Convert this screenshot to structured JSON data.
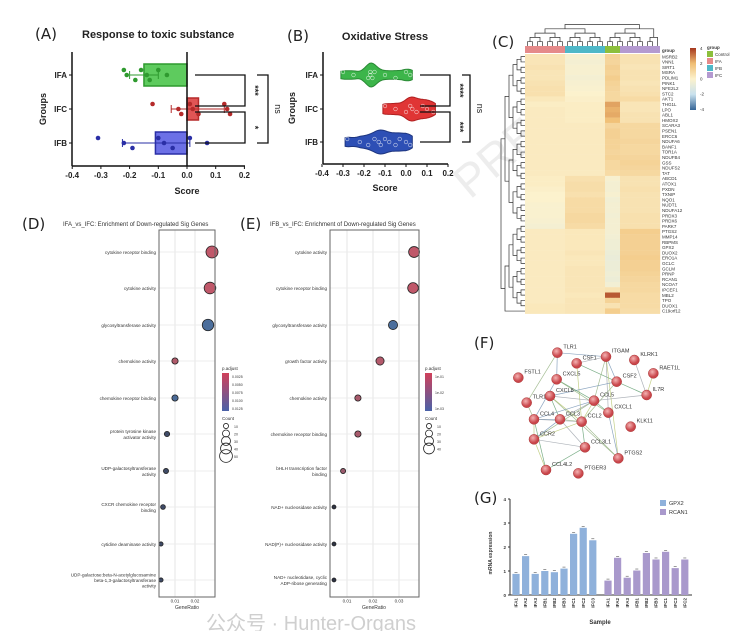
{
  "panels": {
    "A": "(A)",
    "B": "(B)",
    "C": "(C)",
    "D": "(D)",
    "E": "(E)",
    "F": "(F)",
    "G": "(G)"
  },
  "watermarks": {
    "diagonal": "PRES",
    "footer": "公众号 · Hunter-Organs"
  },
  "chart_data": [
    {
      "id": "A",
      "type": "bar",
      "orientation": "horizontal",
      "title": "Response to toxic substance",
      "xlabel": "Score",
      "ylabel": "Groups",
      "xlim": [
        -0.4,
        0.2
      ],
      "xticks": [
        "-0.4",
        "-0.3",
        "-0.2",
        "-0.1",
        "0.0",
        "0.1",
        "0.2"
      ],
      "categories": [
        "IFA",
        "IFC",
        "IFB"
      ],
      "colors": {
        "IFA": "#5ecb5e",
        "IFC": "#e05555",
        "IFB": "#6c70e6"
      },
      "values": [
        -0.15,
        0.04,
        -0.11
      ],
      "error": [
        [
          -0.2,
          -0.1
        ],
        [
          -0.055,
          0.13
        ],
        [
          -0.225,
          0.01
        ]
      ],
      "points": [
        [
          -0.22,
          -0.21,
          -0.18,
          -0.16,
          -0.14,
          -0.13,
          -0.1,
          -0.07
        ],
        [
          -0.12,
          -0.03,
          -0.02,
          0.01,
          0.02,
          0.04,
          0.13,
          0.14,
          0.15
        ],
        [
          -0.31,
          -0.22,
          -0.19,
          -0.1,
          -0.08,
          -0.05,
          0.01,
          0.07
        ]
      ],
      "significance": [
        {
          "pair": [
            "IFA",
            "IFC"
          ],
          "label": "***"
        },
        {
          "pair": [
            "IFC",
            "IFB"
          ],
          "label": "*"
        },
        {
          "pair": [
            "IFA",
            "IFB"
          ],
          "label": "ns"
        }
      ]
    },
    {
      "id": "B",
      "type": "violin",
      "title": "Oxidative Stress",
      "xlabel": "Score",
      "ylabel": "Groups",
      "xlim": [
        -0.4,
        0.2
      ],
      "xticks": [
        "-0.4",
        "-0.3",
        "-0.2",
        "-0.1",
        "0.0",
        "0.1",
        "0.2"
      ],
      "categories": [
        "IFA",
        "IFC",
        "IFB"
      ],
      "colors": {
        "IFA": "#3cb54a",
        "IFC": "#e03535",
        "IFB": "#2d4fb5"
      },
      "points": [
        [
          -0.3,
          -0.25,
          -0.18,
          -0.17,
          -0.17,
          -0.16,
          -0.15,
          -0.1,
          -0.05,
          0.0,
          0.02
        ],
        [
          -0.1,
          -0.05,
          0.0,
          0.02,
          0.03,
          0.05,
          0.08,
          0.1,
          0.13
        ],
        [
          -0.28,
          -0.22,
          -0.18,
          -0.15,
          -0.13,
          -0.12,
          -0.1,
          -0.08,
          -0.05,
          -0.03,
          0.0,
          0.02
        ]
      ],
      "significance": [
        {
          "pair": [
            "IFA",
            "IFC"
          ],
          "label": "****"
        },
        {
          "pair": [
            "IFC",
            "IFB"
          ],
          "label": "***"
        },
        {
          "pair": [
            "IFA",
            "IFB"
          ],
          "label": "ns"
        }
      ]
    },
    {
      "id": "C",
      "type": "heatmap",
      "column_groups": [
        {
          "name": "IFA",
          "n": 8,
          "color": "#e58a8a"
        },
        {
          "name": "IFB",
          "n": 8,
          "color": "#4fb8c8"
        },
        {
          "name": "Control",
          "n": 3,
          "color": "#8cbf3c"
        },
        {
          "name": "IFC",
          "n": 8,
          "color": "#b49ad0"
        }
      ],
      "group_title": "group",
      "legend_title": "group",
      "legend_order": [
        "Control",
        "IFA",
        "IFB",
        "IFC"
      ],
      "scale_ticks": [
        "4",
        "2",
        "0",
        "-2",
        "-4"
      ],
      "scale_range": [
        -4,
        4
      ],
      "rows": [
        "MSRB2",
        "VNN1",
        "SIRT1",
        "MSRA",
        "PDLIM1",
        "PINK1",
        "NFE2L2",
        "STC2",
        "AKT1",
        "THG1L",
        "LPO",
        "ABL1",
        "HMOX2",
        "SCARA3",
        "PSEN1",
        "ERCC6",
        "NDUFA6",
        "BANF1",
        "TOR1A",
        "NDUFB4",
        "GSS",
        "NDUFS2",
        "TAT",
        "ABCD1",
        "ATOX1",
        "PXDN",
        "TXNIP",
        "NQO1",
        "NUDT1",
        "NDUFA12",
        "PRDX3",
        "PRDX6",
        "PARK7",
        "PTGS2",
        "MMP14",
        "RBPMS",
        "GPX2",
        "DUOX2",
        "ERO1A",
        "GCLC",
        "GCLM",
        "PRNP",
        "RCAN1",
        "NCOA7",
        "IPCEF1",
        "MBL2",
        "TPO",
        "DUOX1",
        "C19orf12"
      ],
      "group_means_IFA_IFB_Control_IFC": [
        [
          0.5,
          -0.2,
          1.2,
          0.6
        ],
        [
          0.5,
          -0.3,
          1.1,
          0.6
        ],
        [
          0.6,
          -0.2,
          1.3,
          0.5
        ],
        [
          0.5,
          -0.2,
          1.2,
          0.6
        ],
        [
          0.5,
          -0.3,
          1.4,
          0.6
        ],
        [
          0.6,
          -0.2,
          1.2,
          0.5
        ],
        [
          0.7,
          -0.1,
          1.1,
          0.6
        ],
        [
          0.7,
          0.0,
          1.0,
          0.7
        ],
        [
          0.4,
          0.1,
          1.0,
          0.9
        ],
        [
          0.2,
          0.2,
          2.4,
          0.5
        ],
        [
          0.3,
          0.2,
          2.2,
          0.5
        ],
        [
          0.3,
          0.2,
          2.3,
          0.6
        ],
        [
          0.3,
          0.2,
          1.9,
          0.6
        ],
        [
          0.3,
          0.3,
          1.1,
          1.0
        ],
        [
          0.3,
          0.3,
          1.3,
          1.0
        ],
        [
          0.3,
          0.3,
          1.3,
          1.0
        ],
        [
          0.3,
          0.3,
          1.2,
          1.1
        ],
        [
          0.3,
          0.3,
          1.2,
          1.0
        ],
        [
          0.3,
          0.3,
          1.1,
          1.0
        ],
        [
          0.3,
          0.3,
          1.2,
          1.1
        ],
        [
          0.3,
          0.3,
          1.0,
          1.2
        ],
        [
          0.3,
          0.3,
          1.0,
          1.1
        ],
        [
          0.3,
          0.3,
          0.9,
          1.0
        ],
        [
          0.2,
          0.7,
          -0.2,
          0.6
        ],
        [
          0.2,
          0.8,
          -0.3,
          0.6
        ],
        [
          0.1,
          0.8,
          -0.3,
          0.7
        ],
        [
          0.0,
          0.7,
          -0.2,
          0.6
        ],
        [
          0.0,
          0.9,
          -0.4,
          0.6
        ],
        [
          -0.1,
          0.9,
          -0.3,
          0.6
        ],
        [
          -0.1,
          0.9,
          -0.3,
          0.6
        ],
        [
          -0.1,
          1.0,
          -0.4,
          0.7
        ],
        [
          -0.2,
          1.0,
          -0.3,
          0.7
        ],
        [
          -0.3,
          0.9,
          -0.3,
          0.7
        ],
        [
          0.3,
          0.4,
          -0.3,
          1.4
        ],
        [
          0.3,
          0.4,
          -0.4,
          1.3
        ],
        [
          0.3,
          0.4,
          -0.5,
          1.3
        ],
        [
          0.3,
          0.4,
          -0.5,
          1.3
        ],
        [
          0.3,
          0.5,
          -0.6,
          1.3
        ],
        [
          0.3,
          0.4,
          -0.7,
          1.4
        ],
        [
          0.3,
          0.4,
          -0.6,
          1.3
        ],
        [
          0.3,
          0.5,
          -0.6,
          1.3
        ],
        [
          0.3,
          0.5,
          -0.5,
          1.2
        ],
        [
          0.3,
          0.5,
          -0.6,
          1.1
        ],
        [
          0.3,
          0.5,
          -0.4,
          1.0
        ],
        [
          0.3,
          0.5,
          0.6,
          1.0
        ],
        [
          0.3,
          0.4,
          3.5,
          0.9
        ],
        [
          0.3,
          0.5,
          1.2,
          0.9
        ],
        [
          0.4,
          0.5,
          0.6,
          0.9
        ],
        [
          0.4,
          0.5,
          1.4,
          0.8
        ]
      ]
    },
    {
      "id": "D",
      "type": "scatter",
      "title": "IFA_vs_IFC: Enrichment of Down-regulated Sig Genes",
      "xlabel": "GeneRatio",
      "xticks": [
        0.01,
        0.02
      ],
      "terms": [
        {
          "label": [
            "cytokine receptor binding"
          ],
          "ratio": 0.0285,
          "count": 46,
          "color": "#c0586a"
        },
        {
          "label": [
            "cytokine activity"
          ],
          "ratio": 0.0275,
          "count": 44,
          "color": "#c0586a"
        },
        {
          "label": [
            "glycosyltransferase activity"
          ],
          "ratio": 0.0265,
          "count": 43,
          "color": "#4b6e9c"
        },
        {
          "label": [
            "chemokine activity"
          ],
          "ratio": 0.01,
          "count": 16,
          "color": "#b05a6a"
        },
        {
          "label": [
            "chemokine receptor binding"
          ],
          "ratio": 0.01,
          "count": 16,
          "color": "#4a6a96"
        },
        {
          "label": [
            "protein tyrosine kinase",
            "activator activity"
          ],
          "ratio": 0.006,
          "count": 11,
          "color": "#3e4a66"
        },
        {
          "label": [
            "UDP-galactosyltransferase",
            "activity"
          ],
          "ratio": 0.0055,
          "count": 10,
          "color": "#3e4a66"
        },
        {
          "label": [
            "CXCR chemokine receptor",
            "binding"
          ],
          "ratio": 0.004,
          "count": 8,
          "color": "#3e4a66"
        },
        {
          "label": [
            "cytidine deaminase activity"
          ],
          "ratio": 0.003,
          "count": 5,
          "color": "#3e4a66"
        },
        {
          "label": [
            "UDP-galactose:beta-N-acetylglucosamine",
            "beta-1,3-galactosyltransferase",
            "activity"
          ],
          "ratio": 0.003,
          "count": 5,
          "color": "#3e4a66"
        }
      ],
      "legend": {
        "color_title": "p.adjust",
        "color_ticks": [
          "0.0025",
          "0.0050",
          "0.0075",
          "0.0100",
          "0.0125"
        ],
        "size_title": "Count",
        "size_ticks": [
          "10",
          "20",
          "30",
          "40",
          "50"
        ]
      }
    },
    {
      "id": "E",
      "type": "scatter",
      "title": "IFB_vs_IFC: Enrichment of Down-regulated Sig Genes",
      "xlabel": "GeneRatio",
      "xticks": [
        0.01,
        0.02,
        0.03
      ],
      "terms": [
        {
          "label": [
            "cytokine activity"
          ],
          "ratio": 0.0358,
          "count": 40,
          "color": "#c0586a"
        },
        {
          "label": [
            "cytokine receptor binding"
          ],
          "ratio": 0.0354,
          "count": 39,
          "color": "#c0586a"
        },
        {
          "label": [
            "glycosyltransferase activity"
          ],
          "ratio": 0.0277,
          "count": 31,
          "color": "#4b6e9c"
        },
        {
          "label": [
            "growth factor activity"
          ],
          "ratio": 0.0227,
          "count": 26,
          "color": "#b45a6c"
        },
        {
          "label": [
            "chemokine activity"
          ],
          "ratio": 0.0142,
          "count": 16,
          "color": "#a85a6c"
        },
        {
          "label": [
            "chemokine receptor binding"
          ],
          "ratio": 0.0142,
          "count": 16,
          "color": "#a85a6c"
        },
        {
          "label": [
            "bHLH transcription factor",
            "binding"
          ],
          "ratio": 0.0085,
          "count": 10,
          "color": "#9a5a6c"
        },
        {
          "label": [
            "NAD+ nucleosidase activity"
          ],
          "ratio": 0.005,
          "count": 4,
          "color": "#2e3344"
        },
        {
          "label": [
            "NAD(P)+ nucleosidase activity"
          ],
          "ratio": 0.005,
          "count": 4,
          "color": "#2e3344"
        },
        {
          "label": [
            "NAD+ nucleotidase, cyclic",
            "ADP-ribose generating"
          ],
          "ratio": 0.005,
          "count": 4,
          "color": "#2e3344"
        }
      ],
      "legend": {
        "color_title": "p.adjust",
        "color_ticks": [
          "1e-01",
          "1e-02",
          "1e-03"
        ],
        "size_title": "Count",
        "size_ticks": [
          "10",
          "20",
          "30",
          "40"
        ]
      }
    },
    {
      "id": "F",
      "type": "network",
      "nodes": [
        "TLR1",
        "CSF1",
        "ITGAM",
        "KLRK1",
        "RAET1L",
        "FSTL1",
        "CXCL5",
        "CSF2",
        "IL7R",
        "TLR10",
        "CXCL8",
        "CCL5",
        "CXCL1",
        "CCL4",
        "CCL3",
        "CCL2",
        "KLK11",
        "CCR2",
        "CCL3L1",
        "PTGS2",
        "CCL4L2",
        "PTGER3"
      ],
      "edges": [
        [
          "TLR1",
          "TLR10"
        ],
        [
          "TLR1",
          "ITGAM"
        ],
        [
          "CSF1",
          "ITGAM"
        ],
        [
          "CSF1",
          "CCL2"
        ],
        [
          "CSF1",
          "CSF2"
        ],
        [
          "ITGAM",
          "CCL5"
        ],
        [
          "ITGAM",
          "CSF2"
        ],
        [
          "ITGAM",
          "CXCL1"
        ],
        [
          "ITGAM",
          "PTGS2"
        ],
        [
          "CSF2",
          "IL7R"
        ],
        [
          "CSF2",
          "CCL2"
        ],
        [
          "CSF2",
          "CXCL8"
        ],
        [
          "KLRK1",
          "IL7R"
        ],
        [
          "RAET1L",
          "IL7R"
        ],
        [
          "CXCL5",
          "CCL5"
        ],
        [
          "CXCL5",
          "CXCL1"
        ],
        [
          "CXCL5",
          "CCL4"
        ],
        [
          "CXCL8",
          "CCL5"
        ],
        [
          "CXCL8",
          "CCL2"
        ],
        [
          "CXCL8",
          "CCL3"
        ],
        [
          "CXCL8",
          "PTGS2"
        ],
        [
          "CCL5",
          "CCL4"
        ],
        [
          "CCL5",
          "CCL3"
        ],
        [
          "CCL5",
          "CCL2"
        ],
        [
          "CCL5",
          "CXCL1"
        ],
        [
          "CCL5",
          "CCR2"
        ],
        [
          "CCL4",
          "CCL3"
        ],
        [
          "CCL4",
          "CCL2"
        ],
        [
          "CCL4",
          "CCR2"
        ],
        [
          "CCL4",
          "CCL4L2"
        ],
        [
          "CCL3",
          "CCL2"
        ],
        [
          "CCL3",
          "CCR2"
        ],
        [
          "CCL3",
          "CCL3L1"
        ],
        [
          "CCL2",
          "CCR2"
        ],
        [
          "CCL2",
          "CCL3L1"
        ],
        [
          "CCL2",
          "PTGS2"
        ],
        [
          "CXCL1",
          "PTGS2"
        ],
        [
          "CCR2",
          "CCL3L1"
        ],
        [
          "CCR2",
          "CCL4L2"
        ],
        [
          "CCL3L1",
          "CCL4L2"
        ],
        [
          "TLR10",
          "CCL4"
        ],
        [
          "TLR1",
          "CXCL5"
        ],
        [
          "IL7R",
          "CCL5"
        ]
      ]
    },
    {
      "id": "G",
      "type": "bar",
      "xlabel": "Sample",
      "ylabel": "mRNA expression",
      "ylim": [
        0,
        4
      ],
      "yticks": [
        "0",
        "1",
        "2",
        "3",
        "4"
      ],
      "series": [
        {
          "name": "GPX2",
          "color": "#8fb1db",
          "categories": [
            "IFA1",
            "IFA2",
            "IFA3",
            "IFB1",
            "IFB2",
            "IFB3",
            "IFC1",
            "IFC2",
            "IFC3"
          ],
          "values": [
            0.88,
            1.62,
            0.88,
            1.0,
            0.95,
            1.1,
            2.55,
            2.8,
            2.28
          ]
        },
        {
          "name": "RCAN1",
          "color": "#a999cc",
          "categories": [
            "IFA1",
            "IFA2",
            "IFA3",
            "IFB1",
            "IFB2",
            "IFB3",
            "IFC1",
            "IFC3",
            "IFC2"
          ],
          "values": [
            0.6,
            1.55,
            0.72,
            1.02,
            1.75,
            1.48,
            1.8,
            1.12,
            1.48
          ]
        }
      ]
    }
  ]
}
